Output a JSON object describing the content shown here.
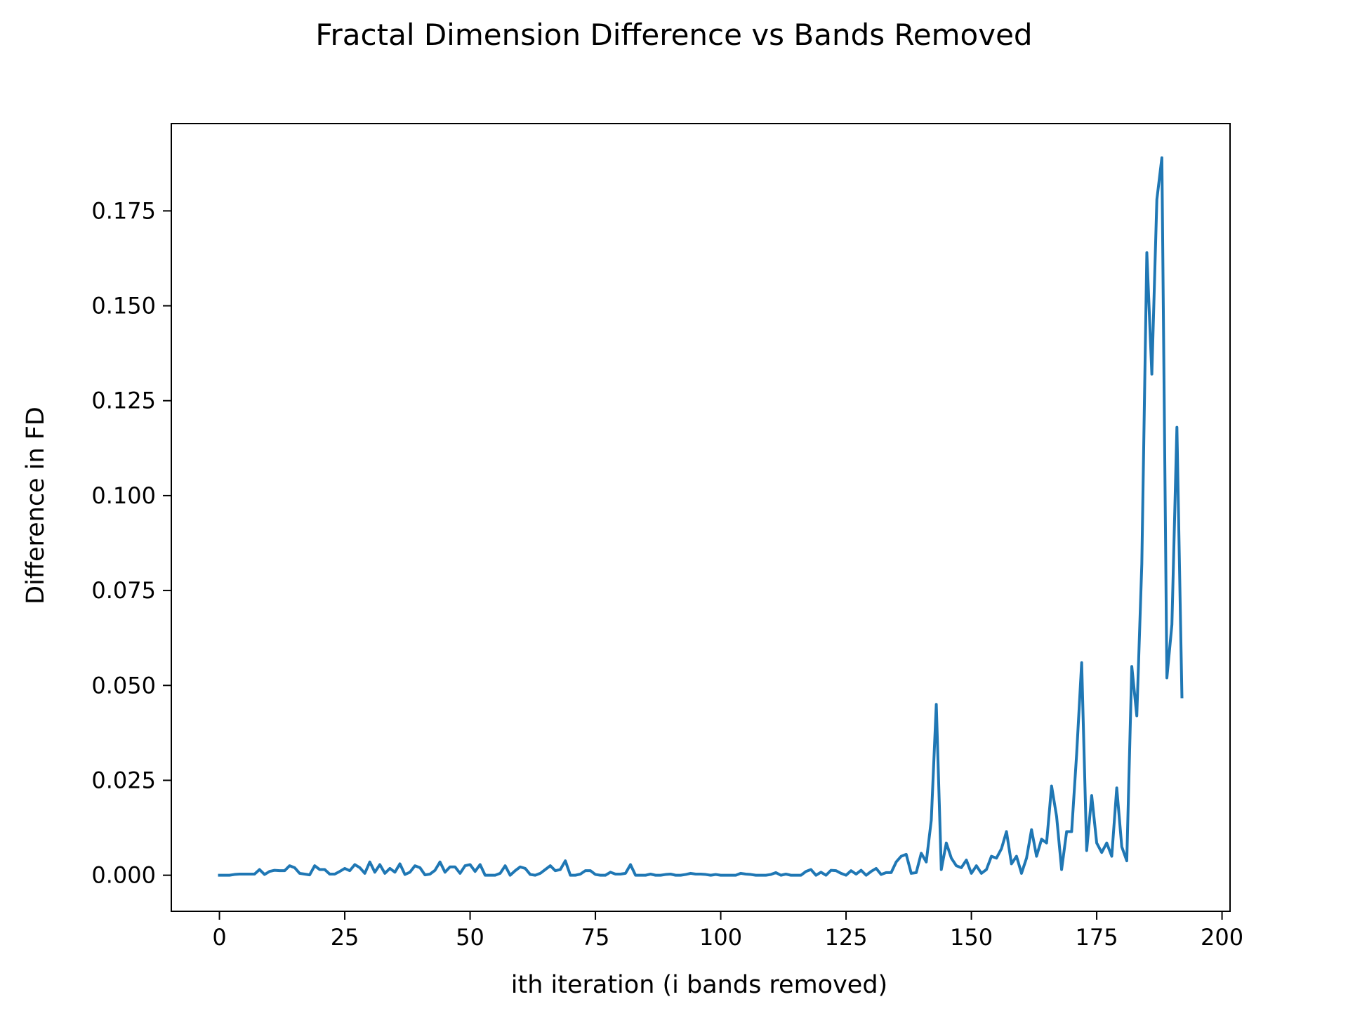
{
  "chart_data": {
    "type": "line",
    "title": "Fractal Dimension Difference vs Bands Removed",
    "xlabel": "ith iteration (i bands removed)",
    "ylabel": "Difference in FD",
    "xlim": [
      -9.6,
      201.6
    ],
    "ylim": [
      -0.0095,
      0.198
    ],
    "xticks": [
      0,
      25,
      50,
      75,
      100,
      125,
      150,
      175,
      200
    ],
    "xtick_labels": [
      "0",
      "25",
      "50",
      "75",
      "100",
      "125",
      "150",
      "175",
      "200"
    ],
    "yticks": [
      0.0,
      0.025,
      0.05,
      0.075,
      0.1,
      0.125,
      0.15,
      0.175
    ],
    "ytick_labels": [
      "0.000",
      "0.025",
      "0.050",
      "0.075",
      "0.100",
      "0.125",
      "0.150",
      "0.175"
    ],
    "grid": false,
    "series": [
      {
        "color": "#1f77b4",
        "x": [
          0,
          1,
          2,
          3,
          4,
          5,
          6,
          7,
          8,
          9,
          10,
          11,
          12,
          13,
          14,
          15,
          16,
          17,
          18,
          19,
          20,
          21,
          22,
          23,
          24,
          25,
          26,
          27,
          28,
          29,
          30,
          31,
          32,
          33,
          34,
          35,
          36,
          37,
          38,
          39,
          40,
          41,
          42,
          43,
          44,
          45,
          46,
          47,
          48,
          49,
          50,
          51,
          52,
          53,
          54,
          55,
          56,
          57,
          58,
          59,
          60,
          61,
          62,
          63,
          64,
          65,
          66,
          67,
          68,
          69,
          70,
          71,
          72,
          73,
          74,
          75,
          76,
          77,
          78,
          79,
          80,
          81,
          82,
          83,
          84,
          85,
          86,
          87,
          88,
          89,
          90,
          91,
          92,
          93,
          94,
          95,
          96,
          97,
          98,
          99,
          100,
          101,
          102,
          103,
          104,
          105,
          106,
          107,
          108,
          109,
          110,
          111,
          112,
          113,
          114,
          115,
          116,
          117,
          118,
          119,
          120,
          121,
          122,
          123,
          124,
          125,
          126,
          127,
          128,
          129,
          130,
          131,
          132,
          133,
          134,
          135,
          136,
          137,
          138,
          139,
          140,
          141,
          142,
          143,
          144,
          145,
          146,
          147,
          148,
          149,
          150,
          151,
          152,
          153,
          154,
          155,
          156,
          157,
          158,
          159,
          160,
          161,
          162,
          163,
          164,
          165,
          166,
          167,
          168,
          169,
          170,
          171,
          172,
          173,
          174,
          175,
          176,
          177,
          178,
          179,
          180,
          181,
          182,
          183,
          184,
          185,
          186,
          187,
          188,
          189,
          190,
          191,
          192
        ],
        "y": [
          0.0,
          0.0,
          0.0,
          0.0002,
          0.0003,
          0.0003,
          0.0003,
          0.0003,
          0.0015,
          0.0002,
          0.001,
          0.0013,
          0.0012,
          0.0012,
          0.0025,
          0.002,
          0.0005,
          0.0003,
          0.0001,
          0.0025,
          0.0015,
          0.0015,
          0.0003,
          0.0003,
          0.001,
          0.0018,
          0.0012,
          0.0028,
          0.002,
          0.0005,
          0.0035,
          0.0008,
          0.0028,
          0.0005,
          0.0018,
          0.0008,
          0.003,
          0.0002,
          0.0008,
          0.0025,
          0.002,
          0.0001,
          0.0003,
          0.0013,
          0.0035,
          0.0008,
          0.0022,
          0.0022,
          0.0005,
          0.0025,
          0.0028,
          0.001,
          0.0028,
          0.0,
          0.0,
          0.0,
          0.0005,
          0.0025,
          0.0,
          0.0012,
          0.0022,
          0.0018,
          0.0002,
          0.0,
          0.0005,
          0.0015,
          0.0025,
          0.0012,
          0.0015,
          0.0038,
          0.0,
          0.0,
          0.0003,
          0.0012,
          0.0012,
          0.0002,
          0.0,
          0.0,
          0.0008,
          0.0003,
          0.0003,
          0.0005,
          0.0028,
          0.0,
          0.0,
          0.0,
          0.0003,
          0.0,
          0.0,
          0.0002,
          0.0003,
          0.0,
          0.0,
          0.0002,
          0.0005,
          0.0003,
          0.0003,
          0.0002,
          0.0,
          0.0002,
          0.0,
          0.0,
          0.0,
          0.0,
          0.0005,
          0.0003,
          0.0002,
          0.0,
          0.0,
          0.0,
          0.0002,
          0.0007,
          0.0,
          0.0003,
          0.0,
          0.0,
          0.0,
          0.001,
          0.0015,
          0.0,
          0.0008,
          0.0,
          0.0013,
          0.0012,
          0.0005,
          0.0,
          0.0012,
          0.0003,
          0.0013,
          0.0,
          0.001,
          0.0018,
          0.0002,
          0.0007,
          0.0007,
          0.0035,
          0.005,
          0.0055,
          0.0005,
          0.0007,
          0.0058,
          0.0035,
          0.0145,
          0.045,
          0.0015,
          0.0085,
          0.0045,
          0.0025,
          0.002,
          0.004,
          0.0005,
          0.0025,
          0.0005,
          0.0015,
          0.005,
          0.0045,
          0.007,
          0.0115,
          0.003,
          0.005,
          0.0005,
          0.0045,
          0.012,
          0.005,
          0.0095,
          0.0085,
          0.0235,
          0.0155,
          0.0015,
          0.0115,
          0.0115,
          0.032,
          0.056,
          0.0065,
          0.021,
          0.0085,
          0.006,
          0.0085,
          0.005,
          0.023,
          0.0075,
          0.0038,
          0.055,
          0.042,
          0.082,
          0.164,
          0.132,
          0.178,
          0.189,
          0.052,
          0.066,
          0.118,
          0.047
        ]
      }
    ]
  }
}
